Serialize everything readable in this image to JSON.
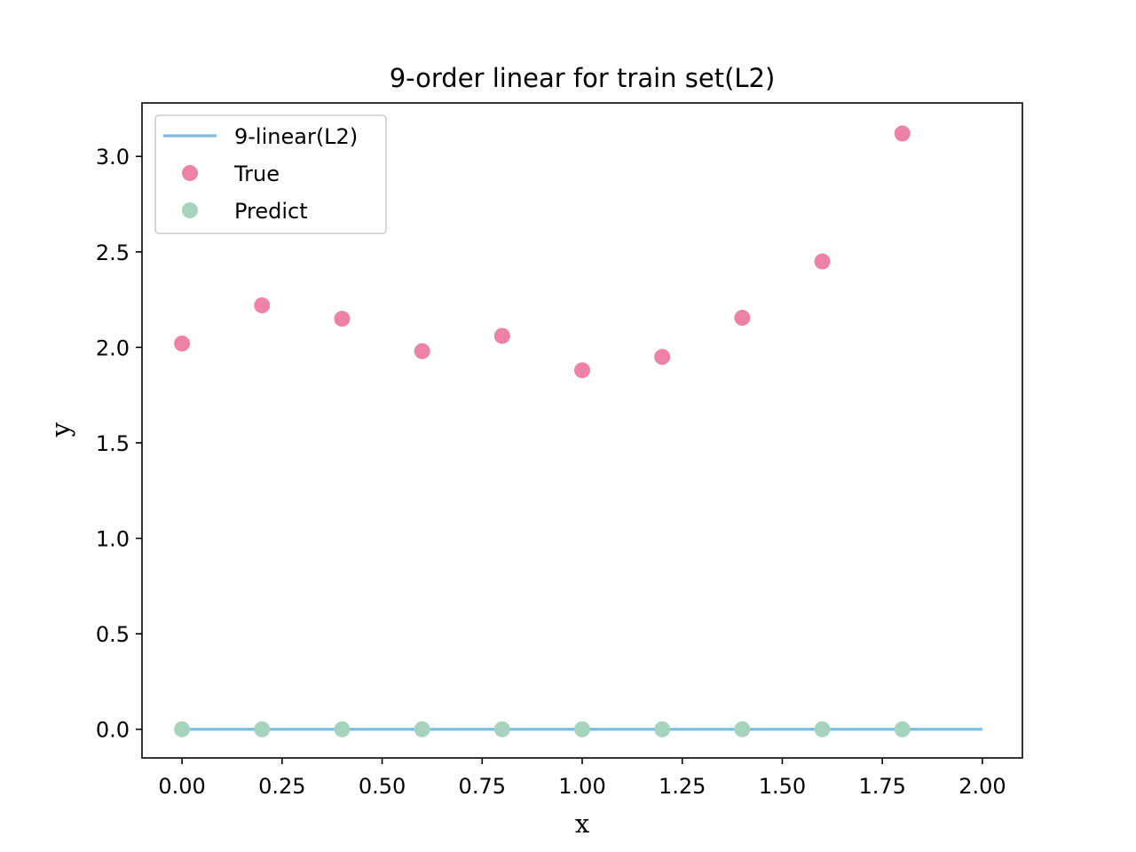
{
  "chart_data": {
    "type": "scatter",
    "title": "9-order linear for train set(L2)",
    "xlabel": "x",
    "ylabel": "y",
    "xlim": [
      -0.1,
      2.1
    ],
    "ylim": [
      -0.15,
      3.28
    ],
    "xticks": [
      0.0,
      0.25,
      0.5,
      0.75,
      1.0,
      1.25,
      1.5,
      1.75,
      2.0
    ],
    "xtick_labels": [
      "0.00",
      "0.25",
      "0.50",
      "0.75",
      "1.00",
      "1.25",
      "1.50",
      "1.75",
      "2.00"
    ],
    "yticks": [
      0.0,
      0.5,
      1.0,
      1.5,
      2.0,
      2.5,
      3.0
    ],
    "ytick_labels": [
      "0.0",
      "0.5",
      "1.0",
      "1.5",
      "2.0",
      "2.5",
      "3.0"
    ],
    "grid": false,
    "legend_position": "top-left",
    "series": [
      {
        "name": "9-linear(L2)",
        "kind": "line",
        "color": "#7BBCE6",
        "x": [
          0.0,
          2.0
        ],
        "y": [
          0.0,
          0.0
        ]
      },
      {
        "name": "True",
        "kind": "points",
        "color": "#EE82A6",
        "x": [
          0.0,
          0.2,
          0.4,
          0.6,
          0.8,
          1.0,
          1.2,
          1.4,
          1.6,
          1.8
        ],
        "y": [
          2.02,
          2.22,
          2.15,
          1.98,
          2.06,
          1.88,
          1.95,
          2.155,
          2.45,
          3.12
        ]
      },
      {
        "name": "Predict",
        "kind": "points",
        "color": "#A6D3BE",
        "x": [
          0.0,
          0.2,
          0.4,
          0.6,
          0.8,
          1.0,
          1.2,
          1.4,
          1.6,
          1.8
        ],
        "y": [
          0.0,
          0.0,
          0.0,
          0.0,
          0.0,
          0.0,
          0.0,
          0.0,
          0.0,
          0.0
        ]
      }
    ]
  }
}
